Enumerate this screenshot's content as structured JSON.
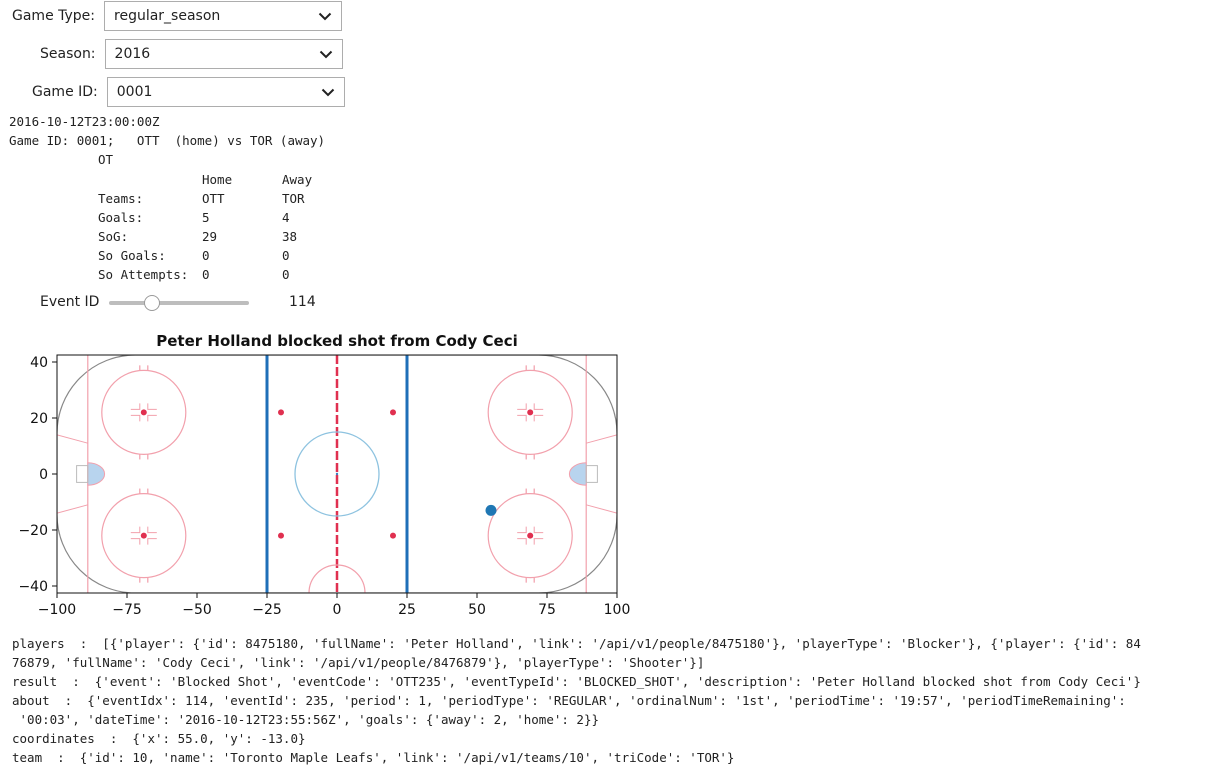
{
  "controls": {
    "game_type": {
      "label": "Game Type:",
      "value": "regular_season"
    },
    "season": {
      "label": "Season:",
      "value": "2016"
    },
    "game_id": {
      "label": "Game ID:",
      "value": "0001"
    }
  },
  "game_info": {
    "datetime": "2016-10-12T23:00:00Z",
    "summary": "Game ID: 0001;   OTT  (home) vs TOR (away)",
    "status": "OT",
    "header": {
      "home": "Home",
      "away": "Away"
    },
    "rows": [
      {
        "label": "Teams:",
        "home": "OTT",
        "away": "TOR"
      },
      {
        "label": "Goals:",
        "home": "5",
        "away": "4"
      },
      {
        "label": "SoG:",
        "home": "29",
        "away": "38"
      },
      {
        "label": "So Goals:",
        "home": "0",
        "away": "0"
      },
      {
        "label": "So Attempts:",
        "home": "0",
        "away": "0"
      }
    ]
  },
  "event_slider": {
    "label": "Event ID",
    "value": "114",
    "fraction": 0.31
  },
  "chart_data": {
    "type": "scatter",
    "title": "Peter Holland blocked shot from Cody Ceci",
    "xlim": [
      -100,
      100
    ],
    "ylim": [
      -42.5,
      42.5
    ],
    "xticks": [
      -100,
      -75,
      -50,
      -25,
      0,
      25,
      50,
      75,
      100
    ],
    "yticks": [
      -40,
      -20,
      0,
      20,
      40
    ],
    "xtick_labels": [
      "−100",
      "−75",
      "−50",
      "−25",
      "0",
      "25",
      "50",
      "75",
      "100"
    ],
    "ytick_labels": [
      "−40",
      "−20",
      "0",
      "20",
      "40"
    ],
    "points": [
      {
        "x": 55.0,
        "y": -13.0
      }
    ],
    "point_color": "#1f77b4",
    "background": "hockey-rink"
  },
  "event_details": {
    "players_line1": "players  :  [{'player': {'id': 8475180, 'fullName': 'Peter Holland', 'link': '/api/v1/people/8475180'}, 'playerType': 'Blocker'}, {'player': {'id': 84",
    "players_line2": "76879, 'fullName': 'Cody Ceci', 'link': '/api/v1/people/8476879'}, 'playerType': 'Shooter'}]",
    "result_line": "result  :  {'event': 'Blocked Shot', 'eventCode': 'OTT235', 'eventTypeId': 'BLOCKED_SHOT', 'description': 'Peter Holland blocked shot from Cody Ceci'}",
    "about_line1": "about  :  {'eventIdx': 114, 'eventId': 235, 'period': 1, 'periodType': 'REGULAR', 'ordinalNum': '1st', 'periodTime': '19:57', 'periodTimeRemaining':",
    "about_line2": " '00:03', 'dateTime': '2016-10-12T23:55:56Z', 'goals': {'away': 2, 'home': 2}}",
    "coordinates_line": "coordinates  :  {'x': 55.0, 'y': -13.0}",
    "team_line": "team  :  {'id': 10, 'name': 'Toronto Maple Leafs', 'link': '/api/v1/teams/10', 'triCode': 'TOR'}"
  }
}
